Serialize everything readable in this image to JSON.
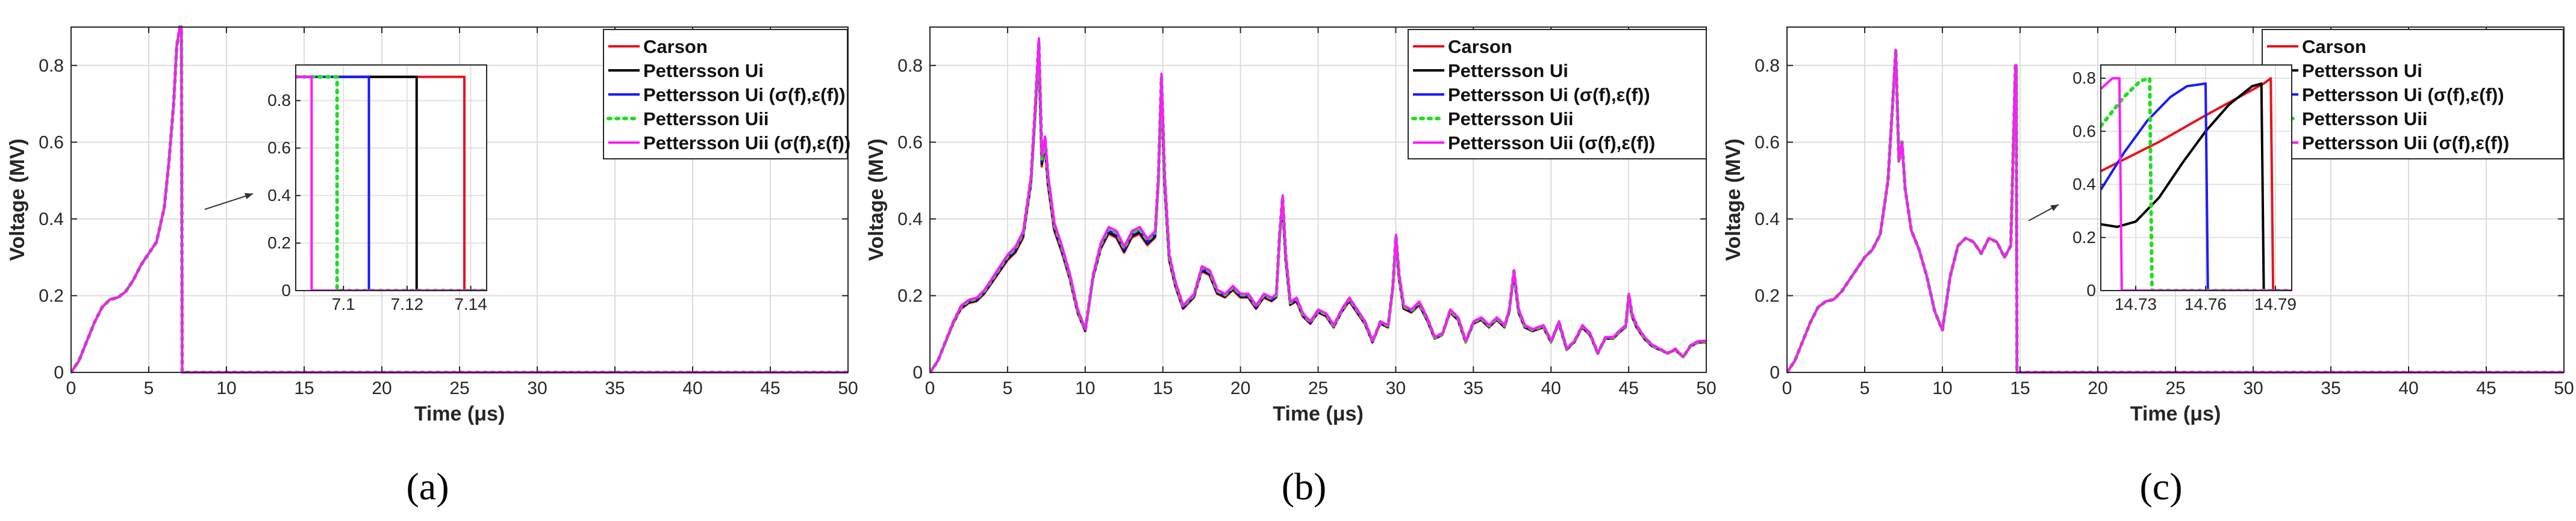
{
  "chart_data": [
    {
      "type": "line",
      "caption": "(a)",
      "xlabel": "Time (μs)",
      "ylabel": "Voltage (MV)",
      "xlim": [
        0,
        50
      ],
      "ylim": [
        0,
        0.9
      ],
      "xticks": [
        0,
        5,
        10,
        15,
        20,
        25,
        30,
        35,
        40,
        45,
        50
      ],
      "yticks": [
        0,
        0.2,
        0.4,
        0.6,
        0.8
      ],
      "grid": true,
      "legend_position": "top-right",
      "series": [
        {
          "name": "Carson",
          "color": "#e8141c",
          "style": "solid"
        },
        {
          "name": "Pettersson Ui",
          "color": "#000000",
          "style": "solid"
        },
        {
          "name": "Pettersson Ui (σ(f),ε(f))",
          "color": "#1a1aff",
          "style": "solid"
        },
        {
          "name": "Pettersson Uii",
          "color": "#22dd22",
          "style": "dotted"
        },
        {
          "name": "Pettersson Uii (σ(f),ε(f))",
          "color": "#ff1aff",
          "style": "solid"
        }
      ],
      "x": [
        0,
        0.5,
        1,
        1.5,
        2,
        2.5,
        3,
        3.5,
        4,
        4.5,
        5,
        5.5,
        6,
        6.3,
        6.6,
        6.8,
        7.0,
        7.1,
        7.15,
        50
      ],
      "values": [
        0,
        0.03,
        0.08,
        0.13,
        0.17,
        0.19,
        0.195,
        0.21,
        0.24,
        0.28,
        0.31,
        0.34,
        0.43,
        0.55,
        0.7,
        0.85,
        0.9,
        0.9,
        0,
        0
      ],
      "inset": {
        "xlim": [
          7.085,
          7.145
        ],
        "ylim": [
          0,
          0.95
        ],
        "xticks": [
          7.1,
          7.12,
          7.14
        ],
        "yticks": [
          0,
          0.2,
          0.4,
          0.6,
          0.8
        ],
        "y_level": 0.9,
        "drop_times": {
          "Carson": 7.138,
          "Pettersson Ui": 7.123,
          "Pettersson Ui (σ(f),ε(f))": 7.108,
          "Pettersson Uii": 7.098,
          "Pettersson Uii (σ(f),ε(f))": 7.09
        }
      }
    },
    {
      "type": "line",
      "caption": "(b)",
      "xlabel": "Time (μs)",
      "ylabel": "Voltage (MV)",
      "xlim": [
        0,
        50
      ],
      "ylim": [
        0,
        0.9
      ],
      "xticks": [
        0,
        5,
        10,
        15,
        20,
        25,
        30,
        35,
        40,
        45,
        50
      ],
      "yticks": [
        0,
        0.2,
        0.4,
        0.6,
        0.8
      ],
      "grid": true,
      "legend_position": "top-right",
      "series": [
        {
          "name": "Carson",
          "color": "#e8141c",
          "style": "solid"
        },
        {
          "name": "Pettersson Ui",
          "color": "#000000",
          "style": "solid"
        },
        {
          "name": "Pettersson Ui (σ(f),ε(f))",
          "color": "#1a1aff",
          "style": "solid"
        },
        {
          "name": "Pettersson Uii",
          "color": "#22dd22",
          "style": "dotted"
        },
        {
          "name": "Pettersson Uii (σ(f),ε(f))",
          "color": "#ff1aff",
          "style": "solid"
        }
      ],
      "x": [
        0,
        0.5,
        1,
        1.5,
        2,
        2.5,
        3,
        3.5,
        4,
        4.5,
        5,
        5.5,
        6,
        6.5,
        6.8,
        7.0,
        7.2,
        7.4,
        7.6,
        8.0,
        8.5,
        9.0,
        9.5,
        10.0,
        10.5,
        11,
        11.5,
        12,
        12.5,
        13,
        13.5,
        14,
        14.5,
        14.7,
        14.9,
        15.1,
        15.4,
        15.8,
        16.3,
        17,
        17.5,
        18,
        18.5,
        19,
        19.5,
        20,
        20.5,
        21,
        21.5,
        22,
        22.3,
        22.5,
        22.7,
        22.9,
        23.2,
        23.6,
        24,
        24.5,
        25,
        25.5,
        26,
        26.5,
        27,
        27.5,
        28,
        28.5,
        29,
        29.5,
        29.8,
        30.0,
        30.2,
        30.5,
        31,
        31.5,
        32,
        32.5,
        33,
        33.5,
        34,
        34.5,
        35,
        35.5,
        36,
        36.5,
        37,
        37.3,
        37.6,
        37.9,
        38.3,
        38.8,
        39.5,
        40,
        40.5,
        41,
        41.5,
        42,
        42.5,
        43,
        43.5,
        44,
        44.5,
        44.8,
        45.0,
        45.2,
        45.5,
        46,
        46.5,
        47,
        47.5,
        48,
        48.5,
        49,
        49.5,
        50
      ],
      "values": [
        0,
        0.03,
        0.08,
        0.13,
        0.17,
        0.185,
        0.19,
        0.21,
        0.24,
        0.27,
        0.3,
        0.32,
        0.36,
        0.5,
        0.7,
        0.85,
        0.55,
        0.6,
        0.5,
        0.38,
        0.32,
        0.25,
        0.16,
        0.11,
        0.25,
        0.33,
        0.37,
        0.36,
        0.32,
        0.36,
        0.37,
        0.34,
        0.36,
        0.5,
        0.76,
        0.5,
        0.3,
        0.23,
        0.17,
        0.2,
        0.27,
        0.26,
        0.21,
        0.2,
        0.22,
        0.2,
        0.2,
        0.17,
        0.2,
        0.19,
        0.2,
        0.35,
        0.45,
        0.3,
        0.18,
        0.19,
        0.15,
        0.13,
        0.16,
        0.15,
        0.12,
        0.16,
        0.19,
        0.16,
        0.13,
        0.08,
        0.13,
        0.12,
        0.22,
        0.35,
        0.25,
        0.17,
        0.16,
        0.18,
        0.14,
        0.09,
        0.1,
        0.16,
        0.14,
        0.08,
        0.13,
        0.14,
        0.12,
        0.14,
        0.12,
        0.16,
        0.26,
        0.16,
        0.12,
        0.11,
        0.12,
        0.08,
        0.13,
        0.06,
        0.08,
        0.12,
        0.1,
        0.05,
        0.09,
        0.09,
        0.11,
        0.12,
        0.2,
        0.15,
        0.12,
        0.09,
        0.07,
        0.06,
        0.05,
        0.06,
        0.04,
        0.07,
        0.08,
        0.08
      ]
    },
    {
      "type": "line",
      "caption": "(c)",
      "xlabel": "Time (μs)",
      "ylabel": "Voltage (MV)",
      "xlim": [
        0,
        50
      ],
      "ylim": [
        0,
        0.9
      ],
      "xticks": [
        0,
        5,
        10,
        15,
        20,
        25,
        30,
        35,
        40,
        45,
        50
      ],
      "yticks": [
        0,
        0.2,
        0.4,
        0.6,
        0.8
      ],
      "grid": true,
      "legend_position": "top-right",
      "series": [
        {
          "name": "Carson",
          "color": "#e8141c",
          "style": "solid"
        },
        {
          "name": "Pettersson Ui",
          "color": "#000000",
          "style": "solid"
        },
        {
          "name": "Pettersson Ui (σ(f),ε(f))",
          "color": "#1a1aff",
          "style": "solid"
        },
        {
          "name": "Pettersson Uii",
          "color": "#22dd22",
          "style": "dotted"
        },
        {
          "name": "Pettersson Uii (σ(f),ε(f))",
          "color": "#ff1aff",
          "style": "solid"
        }
      ],
      "x": [
        0,
        0.5,
        1,
        1.5,
        2,
        2.5,
        3,
        3.5,
        4,
        4.5,
        5,
        5.5,
        6,
        6.5,
        6.8,
        7.0,
        7.2,
        7.4,
        7.6,
        8.0,
        8.5,
        9.0,
        9.5,
        10.0,
        10.5,
        11,
        11.5,
        12,
        12.5,
        13,
        13.5,
        14,
        14.4,
        14.7,
        14.75,
        14.8,
        50
      ],
      "values": [
        0,
        0.03,
        0.08,
        0.13,
        0.17,
        0.185,
        0.19,
        0.21,
        0.24,
        0.27,
        0.3,
        0.32,
        0.36,
        0.5,
        0.7,
        0.84,
        0.55,
        0.6,
        0.48,
        0.37,
        0.32,
        0.25,
        0.16,
        0.11,
        0.25,
        0.33,
        0.35,
        0.34,
        0.31,
        0.35,
        0.34,
        0.3,
        0.33,
        0.8,
        0.8,
        0,
        0
      ],
      "inset": {
        "xlim": [
          14.715,
          14.797
        ],
        "ylim": [
          0,
          0.85
        ],
        "xticks": [
          14.73,
          14.76,
          14.79
        ],
        "yticks": [
          0,
          0.2,
          0.4,
          0.6,
          0.8
        ],
        "curves": {
          "Carson": {
            "x": [
              14.715,
              14.74,
              14.76,
              14.785,
              14.788,
              14.789
            ],
            "y": [
              0.45,
              0.56,
              0.66,
              0.78,
              0.8,
              0
            ]
          },
          "Pettersson Ui": {
            "x": [
              14.715,
              14.722,
              14.73,
              14.74,
              14.75,
              14.76,
              14.77,
              14.78,
              14.784,
              14.785
            ],
            "y": [
              0.25,
              0.24,
              0.26,
              0.35,
              0.48,
              0.6,
              0.7,
              0.77,
              0.78,
              0
            ]
          },
          "Pettersson Ui (σ(f),ε(f))": {
            "x": [
              14.715,
              14.725,
              14.735,
              14.745,
              14.752,
              14.76,
              14.761
            ],
            "y": [
              0.38,
              0.52,
              0.64,
              0.73,
              0.77,
              0.78,
              0
            ]
          },
          "Pettersson Uii": {
            "x": [
              14.715,
              14.725,
              14.732,
              14.736,
              14.737
            ],
            "y": [
              0.62,
              0.73,
              0.79,
              0.8,
              0
            ]
          },
          "Pettersson Uii (σ(f),ε(f))": {
            "x": [
              14.715,
              14.72,
              14.723,
              14.724
            ],
            "y": [
              0.76,
              0.8,
              0.8,
              0
            ]
          }
        }
      }
    }
  ]
}
